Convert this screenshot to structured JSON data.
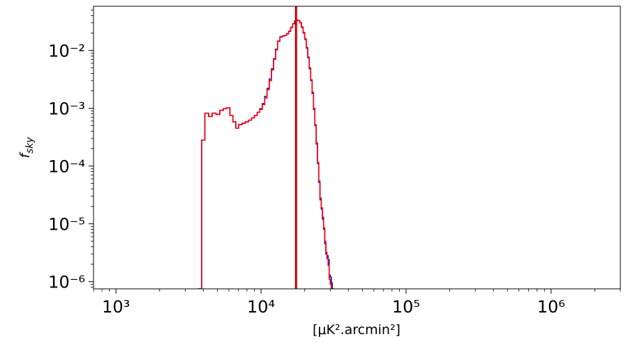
{
  "chart_data": {
    "type": "line",
    "drawstyle": "steps",
    "xscale": "log",
    "yscale": "log",
    "xlim": [
      700,
      3000000
    ],
    "ylim": [
      7.5e-07,
      0.058
    ],
    "xlabel": "[μK².arcmin²]",
    "ylabel": "f_sky",
    "x_ticks": [
      {
        "value": 1000,
        "label": "10³"
      },
      {
        "value": 10000,
        "label": "10⁴"
      },
      {
        "value": 100000,
        "label": "10⁵"
      },
      {
        "value": 1000000,
        "label": "10⁶"
      }
    ],
    "y_ticks": [
      {
        "value": 0.01,
        "label": "10⁻²"
      },
      {
        "value": 0.001,
        "label": "10⁻³"
      },
      {
        "value": 0.0001,
        "label": "10⁻⁴"
      },
      {
        "value": 1e-05,
        "label": "10⁻⁵"
      },
      {
        "value": 1e-06,
        "label": "10⁻⁶"
      }
    ],
    "grid": false,
    "series": [
      {
        "color": "#0000ff",
        "x": [
          3700,
          3900,
          4100,
          4350,
          4600,
          4900,
          5200,
          5500,
          5800,
          6100,
          6400,
          6700,
          7000,
          7400,
          7800,
          8200,
          8600,
          9000,
          9400,
          9800,
          10200,
          10600,
          11000,
          11400,
          11800,
          12200,
          12600,
          13000,
          13500,
          14000,
          14500,
          15000,
          15500,
          16000,
          16500,
          17000,
          17500,
          18000,
          18500,
          19000,
          19500,
          20000,
          20500,
          21000,
          21500,
          22000,
          22500,
          23000,
          23500,
          24000,
          24500,
          25000,
          25500,
          26000,
          26500,
          27000,
          27500,
          28000,
          28500,
          29000,
          29500,
          30000,
          30500,
          31000,
          31500,
          32000
        ],
        "y": [
          7.5e-07,
          0.00028,
          0.00082,
          0.00072,
          0.00082,
          0.00078,
          0.00092,
          0.00098,
          0.00102,
          0.00075,
          0.00058,
          0.00045,
          0.00052,
          0.00055,
          0.00058,
          0.00062,
          0.00068,
          0.00075,
          0.00085,
          0.00098,
          0.0012,
          0.0016,
          0.0022,
          0.0032,
          0.0048,
          0.0072,
          0.0105,
          0.0145,
          0.0172,
          0.0178,
          0.0182,
          0.0195,
          0.0215,
          0.025,
          0.029,
          0.032,
          0.0335,
          0.033,
          0.03,
          0.025,
          0.02,
          0.0155,
          0.011,
          0.0075,
          0.0048,
          0.003,
          0.0018,
          0.00095,
          0.0005,
          0.00024,
          0.00011,
          5.2e-05,
          2.6e-05,
          1.8e-05,
          1.2e-05,
          8e-06,
          4.5e-06,
          3e-06,
          2.8e-06,
          2.4e-06,
          1.3e-06,
          1.2e-06,
          9.5e-07,
          7.5e-07,
          7.5e-07,
          7.5e-07
        ]
      },
      {
        "color": "#ff0000",
        "x": [
          3700,
          3900,
          4100,
          4350,
          4600,
          4900,
          5200,
          5500,
          5800,
          6100,
          6400,
          6700,
          7000,
          7400,
          7800,
          8200,
          8600,
          9000,
          9400,
          9800,
          10200,
          10600,
          11000,
          11400,
          11800,
          12200,
          12600,
          13000,
          13500,
          14000,
          14500,
          15000,
          15500,
          16000,
          16500,
          17000,
          17500,
          18000,
          18500,
          19000,
          19500,
          20000,
          20500,
          21000,
          21500,
          22000,
          22500,
          23000,
          23500,
          24000,
          24500,
          25000,
          25500,
          26000,
          26500,
          27000,
          27500,
          28000,
          28500,
          29000,
          29500,
          30000,
          30500,
          31000
        ],
        "y": [
          7.5e-07,
          0.00028,
          0.00082,
          0.00072,
          0.00082,
          0.00078,
          0.00092,
          0.00098,
          0.00102,
          0.00075,
          0.00058,
          0.00045,
          0.00052,
          0.00055,
          0.00058,
          0.00062,
          0.00068,
          0.00075,
          0.00085,
          0.00095,
          0.00115,
          0.0015,
          0.0021,
          0.003,
          0.0046,
          0.007,
          0.0102,
          0.0143,
          0.017,
          0.0177,
          0.0181,
          0.0193,
          0.0213,
          0.0248,
          0.0288,
          0.0318,
          0.0334,
          0.033,
          0.0302,
          0.0255,
          0.0205,
          0.0158,
          0.0112,
          0.0077,
          0.005,
          0.0031,
          0.0019,
          0.001,
          0.00052,
          0.00025,
          0.000115,
          5.5e-05,
          2.8e-05,
          1.9e-05,
          1.3e-05,
          8.5e-06,
          5e-06,
          3.2e-06,
          2.5e-06,
          1.9e-06,
          1.1e-06,
          9e-07,
          7.5e-07,
          7.5e-07
        ]
      }
    ],
    "vertical_lines": [
      {
        "x": 17300,
        "color": "#8b0000"
      },
      {
        "x": 17600,
        "color": "#ff0000"
      }
    ]
  }
}
